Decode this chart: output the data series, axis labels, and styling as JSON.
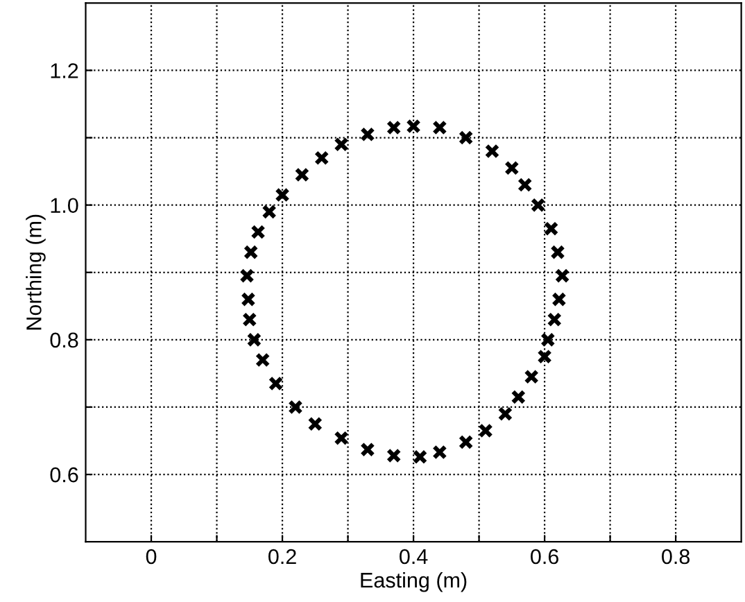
{
  "chart_data": {
    "type": "scatter",
    "xlabel": "Easting (m)",
    "ylabel": "Northing (m)",
    "x": [
      0.4,
      0.44,
      0.48,
      0.52,
      0.55,
      0.57,
      0.59,
      0.61,
      0.62,
      0.627,
      0.622,
      0.615,
      0.605,
      0.6,
      0.58,
      0.56,
      0.54,
      0.51,
      0.48,
      0.44,
      0.41,
      0.37,
      0.33,
      0.29,
      0.25,
      0.22,
      0.19,
      0.17,
      0.157,
      0.15,
      0.148,
      0.146,
      0.152,
      0.163,
      0.18,
      0.2,
      0.23,
      0.26,
      0.29,
      0.33,
      0.37
    ],
    "series": [
      {
        "color": "#000000",
        "values": [
          1.117,
          1.115,
          1.1,
          1.08,
          1.055,
          1.03,
          1.0,
          0.965,
          0.93,
          0.895,
          0.86,
          0.83,
          0.8,
          0.775,
          0.745,
          0.715,
          0.69,
          0.665,
          0.648,
          0.633,
          0.626,
          0.628,
          0.637,
          0.654,
          0.675,
          0.7,
          0.735,
          0.77,
          0.8,
          0.83,
          0.86,
          0.895,
          0.93,
          0.96,
          0.99,
          1.015,
          1.045,
          1.07,
          1.09,
          1.105,
          1.115
        ]
      }
    ],
    "xlim": [
      -0.1,
      0.9
    ],
    "ylim": [
      0.5,
      1.3
    ],
    "xticks": [
      0,
      {
        "value": 0.1,
        "label": null
      },
      0.2,
      {
        "value": 0.3,
        "label": null
      },
      0.4,
      {
        "value": 0.5,
        "label": null
      },
      0.6,
      {
        "value": 0.7,
        "label": null
      },
      0.8
    ],
    "yticks": [
      0.6,
      {
        "value": 0.7,
        "label": null
      },
      0.8,
      {
        "value": 0.9,
        "label": null
      },
      {
        "value": 1.0,
        "label": "1.0"
      },
      {
        "value": 1.1,
        "label": null
      },
      1.2
    ],
    "grid": true,
    "marker": "cross"
  }
}
